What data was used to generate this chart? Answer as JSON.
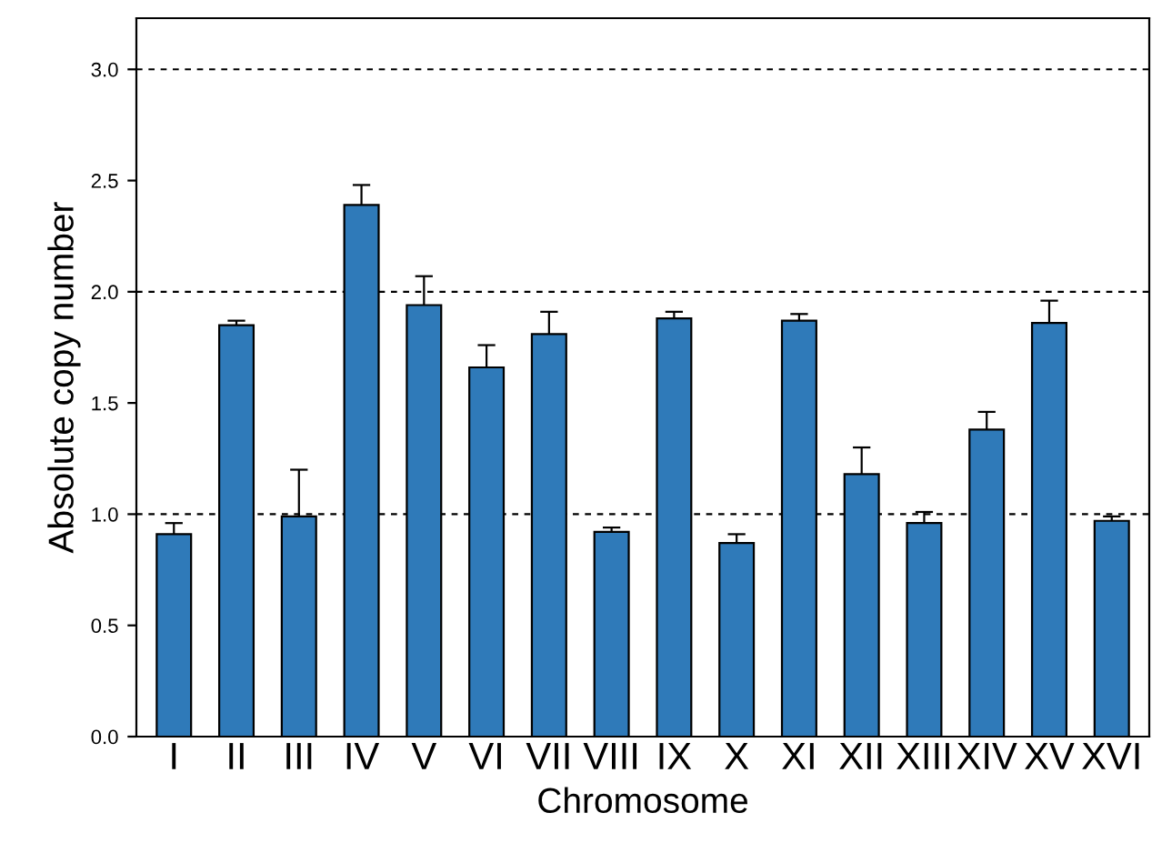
{
  "chart_data": {
    "type": "bar",
    "xlabel": "Chromosome",
    "ylabel": "Absolute copy number",
    "categories": [
      "I",
      "II",
      "III",
      "IV",
      "V",
      "VI",
      "VII",
      "VIII",
      "IX",
      "X",
      "XI",
      "XII",
      "XIII",
      "XIV",
      "XV",
      "XVI"
    ],
    "values": [
      0.91,
      1.85,
      0.99,
      2.39,
      1.94,
      1.66,
      1.81,
      0.92,
      1.88,
      0.87,
      1.87,
      1.18,
      0.96,
      1.38,
      1.86,
      0.97
    ],
    "errors": [
      [
        0.91,
        0.96
      ],
      [
        1.85,
        1.87
      ],
      [
        0.99,
        1.2
      ],
      [
        2.39,
        2.48
      ],
      [
        1.94,
        2.07
      ],
      [
        1.66,
        1.76
      ],
      [
        1.81,
        1.91
      ],
      [
        0.92,
        0.94
      ],
      [
        1.88,
        1.91
      ],
      [
        0.87,
        0.91
      ],
      [
        1.87,
        1.9
      ],
      [
        1.18,
        1.3
      ],
      [
        0.96,
        1.01
      ],
      [
        1.38,
        1.46
      ],
      [
        1.86,
        1.96
      ],
      [
        0.97,
        0.99
      ]
    ],
    "color": "#2f7ab9",
    "ylim": [
      0,
      3.23
    ],
    "yticks": [
      {
        "value": 0,
        "label": "0.0"
      },
      {
        "value": 0.5,
        "label": "0.5"
      },
      {
        "value": 1,
        "label": "1.0"
      },
      {
        "value": 1.5,
        "label": "1.5"
      },
      {
        "value": 2,
        "label": "2.0"
      },
      {
        "value": 2.5,
        "label": "2.5"
      },
      {
        "value": 3,
        "label": "3.0"
      }
    ],
    "ref_lines": [
      {
        "axis": "y",
        "value": 1,
        "line_style": "dashed",
        "color": "#000000"
      },
      {
        "axis": "y",
        "value": 2,
        "line_style": "dashed",
        "color": "#000000"
      },
      {
        "axis": "y",
        "value": 3,
        "line_style": "dashed",
        "color": "#000000"
      }
    ],
    "grid": false,
    "legend": false
  }
}
